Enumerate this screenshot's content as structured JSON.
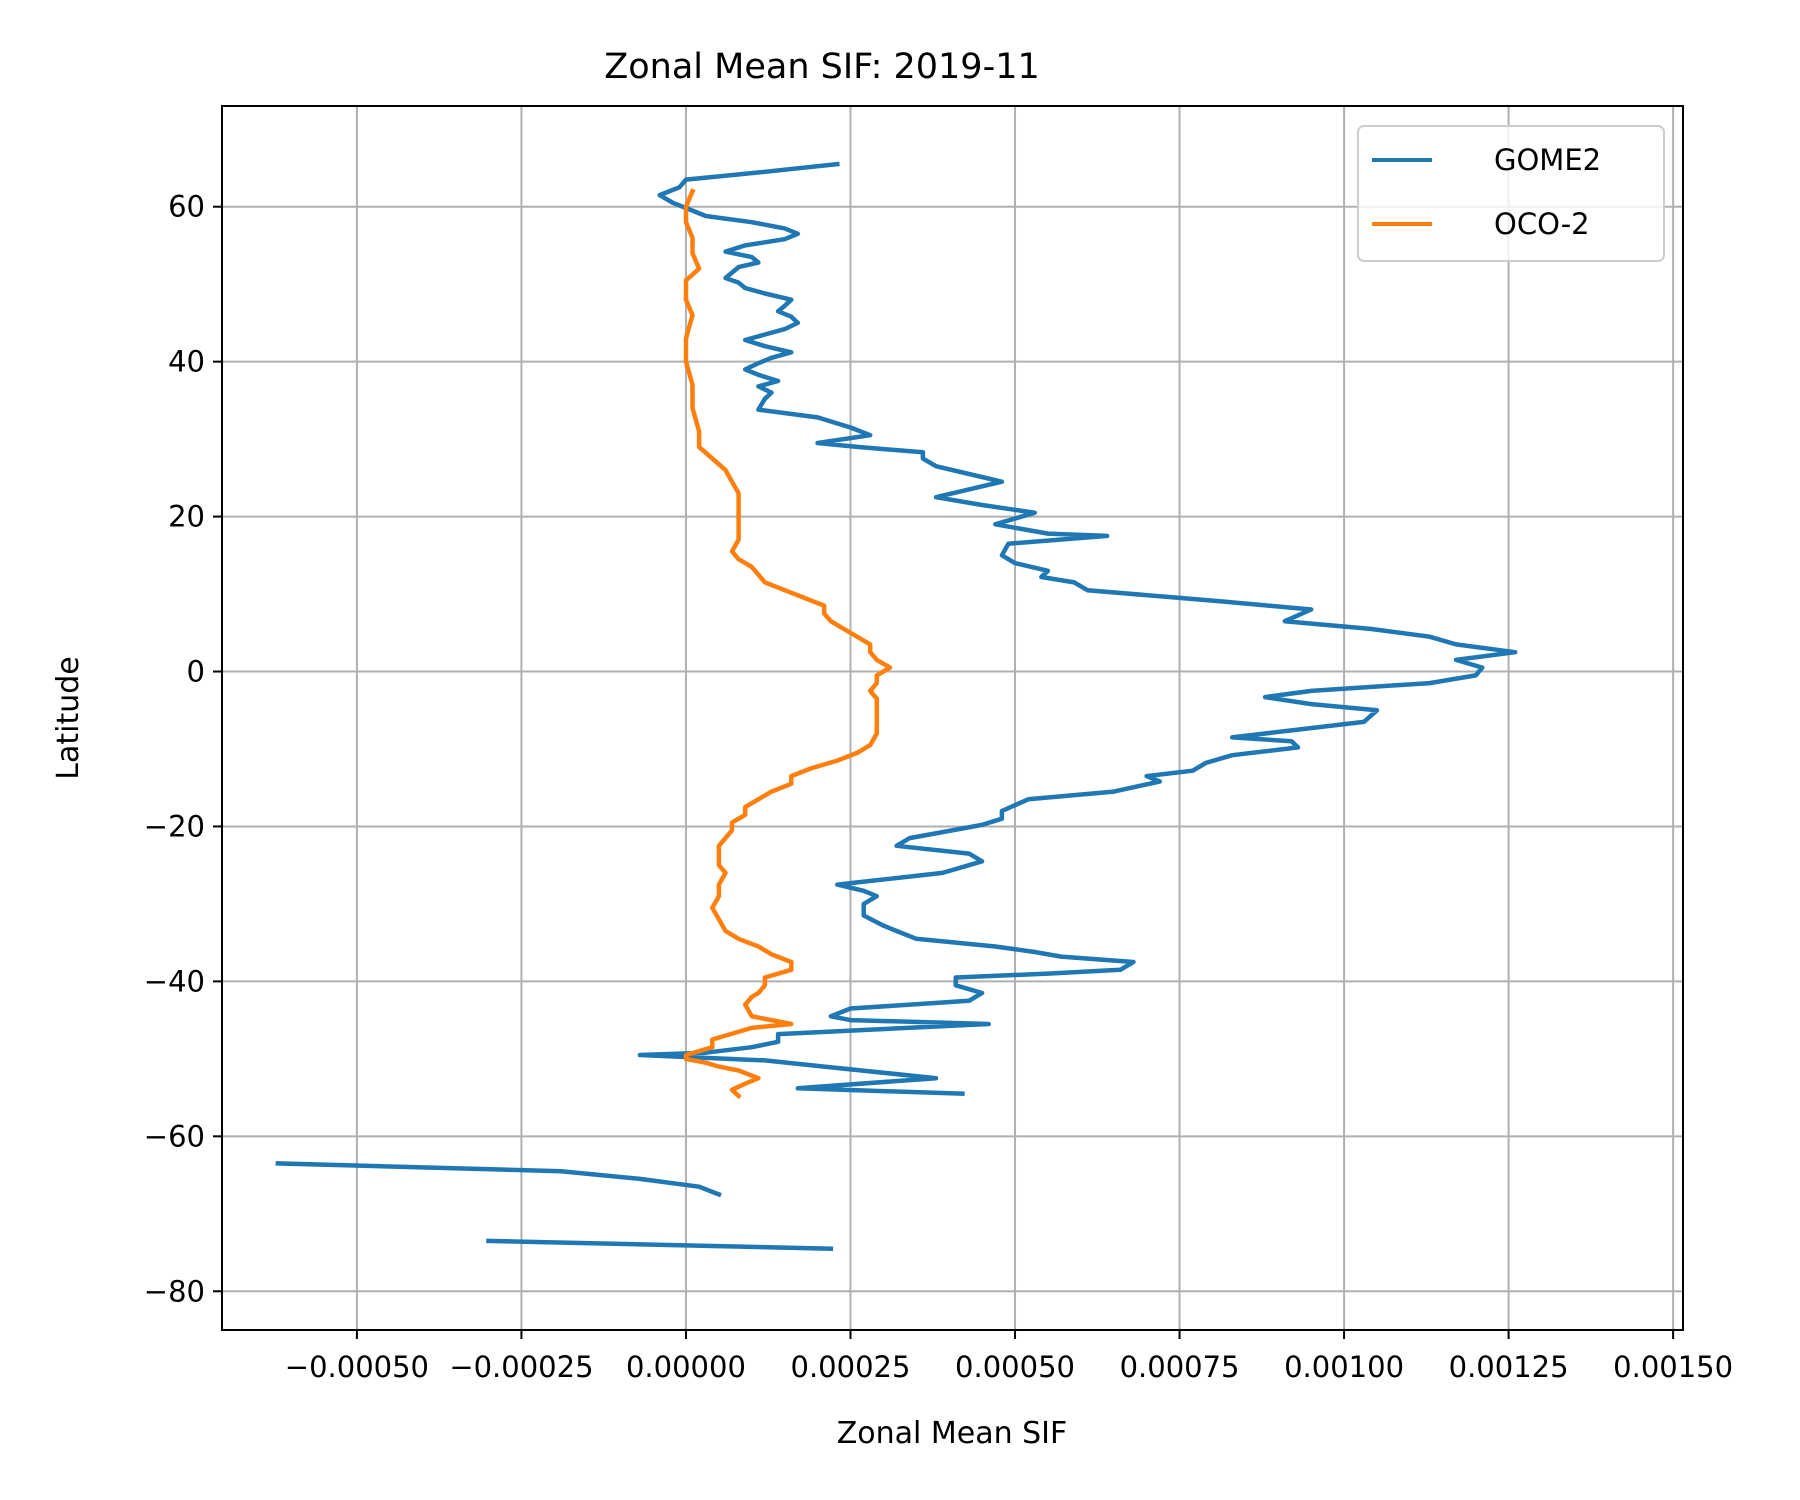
{
  "chart_data": {
    "type": "line",
    "title": "Zonal Mean SIF: 2019-11",
    "xlabel": "Zonal Mean SIF",
    "ylabel": "Latitude",
    "xlim": [
      -0.000705,
      0.001515
    ],
    "ylim": [
      -85,
      73
    ],
    "grid": true,
    "legend_position": "top-right",
    "x_ticks": [
      -0.0005,
      -0.00025,
      0.0,
      0.00025,
      0.0005,
      0.00075,
      0.001,
      0.00125,
      0.0015
    ],
    "x_tick_labels": [
      "−0.00050",
      "−0.00025",
      "0.00000",
      "0.00025",
      "0.00050",
      "0.00075",
      "0.00100",
      "0.00125",
      "0.00150"
    ],
    "y_ticks": [
      -80,
      -60,
      -40,
      -20,
      0,
      20,
      40,
      60
    ],
    "y_tick_labels": [
      "−80",
      "−60",
      "−40",
      "−20",
      "0",
      "20",
      "40",
      "60"
    ],
    "series": [
      {
        "name": "GOME2",
        "color": "#1f77b4",
        "segments": [
          [
            [
              0.00023,
              65.5
            ],
            [
              0.00012,
              64.5
            ],
            [
              0.0,
              63.5
            ],
            [
              -1e-05,
              62.5
            ],
            [
              -4e-05,
              61.5
            ],
            [
              -2e-05,
              60.5
            ],
            [
              1e-05,
              59.5
            ],
            [
              3e-05,
              58.8
            ],
            [
              0.0001,
              58.0
            ],
            [
              0.00015,
              57.2
            ],
            [
              0.00017,
              56.5
            ],
            [
              0.00015,
              55.8
            ],
            [
              9e-05,
              55.0
            ],
            [
              6e-05,
              54.2
            ],
            [
              0.0001,
              53.5
            ],
            [
              0.00011,
              52.8
            ],
            [
              8e-05,
              52.2
            ],
            [
              7e-05,
              51.5
            ],
            [
              6e-05,
              50.8
            ],
            [
              8e-05,
              50.2
            ],
            [
              9e-05,
              49.5
            ],
            [
              0.00012,
              48.8
            ],
            [
              0.00016,
              48.0
            ],
            [
              0.00015,
              47.2
            ],
            [
              0.00014,
              46.5
            ],
            [
              0.00016,
              45.8
            ],
            [
              0.00017,
              45.0
            ],
            [
              0.00015,
              44.2
            ],
            [
              0.00012,
              43.5
            ],
            [
              9e-05,
              42.8
            ],
            [
              0.00012,
              42.0
            ],
            [
              0.00016,
              41.2
            ],
            [
              0.00013,
              40.5
            ],
            [
              0.00011,
              39.8
            ],
            [
              9e-05,
              39.0
            ],
            [
              0.00011,
              38.3
            ],
            [
              0.00014,
              37.5
            ],
            [
              0.00011,
              36.8
            ],
            [
              0.00013,
              36.0
            ],
            [
              0.00012,
              35.2
            ],
            [
              0.00011,
              33.8
            ],
            [
              0.0002,
              32.8
            ],
            [
              0.00025,
              31.5
            ],
            [
              0.00028,
              30.5
            ],
            [
              0.0002,
              29.5
            ],
            [
              0.00026,
              29.0
            ],
            [
              0.00036,
              28.3
            ],
            [
              0.00036,
              27.5
            ],
            [
              0.00038,
              26.5
            ],
            [
              0.00043,
              25.5
            ],
            [
              0.00048,
              24.5
            ],
            [
              0.00038,
              22.5
            ],
            [
              0.00045,
              21.5
            ],
            [
              0.00053,
              20.5
            ],
            [
              0.00047,
              19.0
            ],
            [
              0.00055,
              17.8
            ],
            [
              0.00064,
              17.5
            ],
            [
              0.00049,
              16.5
            ],
            [
              0.00048,
              15.0
            ],
            [
              0.0005,
              14.0
            ],
            [
              0.00055,
              13.0
            ],
            [
              0.00054,
              12.2
            ],
            [
              0.00059,
              11.5
            ],
            [
              0.00061,
              10.5
            ],
            [
              0.00075,
              9.5
            ],
            [
              0.00082,
              9.0
            ],
            [
              0.00095,
              8.0
            ],
            [
              0.00091,
              6.5
            ],
            [
              0.00104,
              5.5
            ],
            [
              0.00113,
              4.5
            ],
            [
              0.00117,
              3.5
            ],
            [
              0.00126,
              2.5
            ],
            [
              0.00117,
              1.5
            ],
            [
              0.00121,
              0.5
            ],
            [
              0.0012,
              -0.5
            ],
            [
              0.00113,
              -1.5
            ],
            [
              0.00095,
              -2.5
            ],
            [
              0.00088,
              -3.3
            ],
            [
              0.00095,
              -4.2
            ],
            [
              0.00105,
              -5.0
            ],
            [
              0.00103,
              -6.5
            ],
            [
              0.00093,
              -7.5
            ],
            [
              0.00083,
              -8.5
            ],
            [
              0.00092,
              -9.0
            ],
            [
              0.00093,
              -9.8
            ],
            [
              0.00083,
              -10.8
            ],
            [
              0.00079,
              -11.8
            ],
            [
              0.00077,
              -12.8
            ],
            [
              0.0007,
              -13.5
            ],
            [
              0.00072,
              -14.2
            ],
            [
              0.00065,
              -15.5
            ],
            [
              0.00052,
              -16.5
            ],
            [
              0.00048,
              -18.0
            ],
            [
              0.00048,
              -19.0
            ],
            [
              0.00045,
              -19.8
            ],
            [
              0.00034,
              -21.5
            ],
            [
              0.00032,
              -22.5
            ],
            [
              0.00043,
              -23.5
            ],
            [
              0.00045,
              -24.5
            ],
            [
              0.00039,
              -26.0
            ],
            [
              0.00023,
              -27.5
            ],
            [
              0.00027,
              -28.3
            ],
            [
              0.00029,
              -29.0
            ],
            [
              0.00027,
              -30.0
            ],
            [
              0.00027,
              -31.5
            ],
            [
              0.0003,
              -32.8
            ],
            [
              0.00032,
              -33.5
            ],
            [
              0.00035,
              -34.5
            ],
            [
              0.00047,
              -35.5
            ],
            [
              0.00053,
              -36.2
            ],
            [
              0.00057,
              -36.8
            ],
            [
              0.00068,
              -37.5
            ],
            [
              0.00066,
              -38.5
            ],
            [
              0.00055,
              -39.0
            ],
            [
              0.00041,
              -39.5
            ],
            [
              0.00041,
              -40.5
            ],
            [
              0.00045,
              -41.5
            ],
            [
              0.00043,
              -42.5
            ],
            [
              0.00025,
              -43.5
            ],
            [
              0.00022,
              -44.5
            ],
            [
              0.00025,
              -45.0
            ],
            [
              0.00046,
              -45.5
            ],
            [
              0.00014,
              -46.8
            ],
            [
              0.00014,
              -47.8
            ],
            [
              0.0001,
              -48.5
            ],
            [
              3e-05,
              -49.2
            ],
            [
              -7e-05,
              -49.5
            ],
            [
              0.00012,
              -50.2
            ],
            [
              0.00021,
              -51.0
            ],
            [
              0.00038,
              -52.5
            ],
            [
              0.00017,
              -53.8
            ],
            [
              0.00042,
              -54.5
            ]
          ],
          [
            [
              -0.00062,
              -63.5
            ],
            [
              -0.00019,
              -64.5
            ],
            [
              -7e-05,
              -65.5
            ],
            [
              2e-05,
              -66.5
            ],
            [
              5e-05,
              -67.5
            ]
          ],
          [
            [
              -0.0003,
              -73.5
            ],
            [
              0.00022,
              -74.5
            ]
          ]
        ]
      },
      {
        "name": "OCO-2",
        "color": "#ff7f0e",
        "segments": [
          [
            [
              1e-05,
              62.0
            ],
            [
              0.0,
              60.0
            ],
            [
              0.0,
              58.0
            ],
            [
              1e-05,
              56.0
            ],
            [
              1e-05,
              54.0
            ],
            [
              2e-05,
              52.0
            ],
            [
              0.0,
              50.5
            ],
            [
              0.0,
              48.0
            ],
            [
              1e-05,
              46.0
            ],
            [
              0.0,
              43.0
            ],
            [
              0.0,
              40.0
            ],
            [
              1e-05,
              37.0
            ],
            [
              1e-05,
              34.0
            ],
            [
              2e-05,
              31.0
            ],
            [
              2e-05,
              29.0
            ],
            [
              4e-05,
              27.5
            ],
            [
              6e-05,
              26.0
            ],
            [
              7e-05,
              24.5
            ],
            [
              8e-05,
              23.0
            ],
            [
              8e-05,
              21.0
            ],
            [
              8e-05,
              19.0
            ],
            [
              8e-05,
              17.0
            ],
            [
              7e-05,
              15.5
            ],
            [
              8e-05,
              14.5
            ],
            [
              0.0001,
              13.5
            ],
            [
              0.00011,
              12.5
            ],
            [
              0.00012,
              11.5
            ],
            [
              0.00015,
              10.5
            ],
            [
              0.00018,
              9.5
            ],
            [
              0.00021,
              8.5
            ],
            [
              0.00021,
              7.5
            ],
            [
              0.00022,
              6.5
            ],
            [
              0.00024,
              5.5
            ],
            [
              0.00026,
              4.5
            ],
            [
              0.00028,
              3.5
            ],
            [
              0.00028,
              2.5
            ],
            [
              0.00029,
              1.5
            ],
            [
              0.00031,
              0.5
            ],
            [
              0.00029,
              -0.5
            ],
            [
              0.00029,
              -1.5
            ],
            [
              0.00028,
              -2.5
            ],
            [
              0.00029,
              -3.5
            ],
            [
              0.00029,
              -5.0
            ],
            [
              0.00029,
              -6.5
            ],
            [
              0.00029,
              -8.0
            ],
            [
              0.00028,
              -9.5
            ],
            [
              0.00026,
              -10.5
            ],
            [
              0.00023,
              -11.5
            ],
            [
              0.00019,
              -12.5
            ],
            [
              0.00016,
              -13.5
            ],
            [
              0.00016,
              -14.5
            ],
            [
              0.00013,
              -15.5
            ],
            [
              0.00011,
              -16.5
            ],
            [
              9e-05,
              -17.5
            ],
            [
              9e-05,
              -18.5
            ],
            [
              7e-05,
              -19.5
            ],
            [
              7e-05,
              -20.5
            ],
            [
              6e-05,
              -21.5
            ],
            [
              5e-05,
              -22.5
            ],
            [
              5e-05,
              -24.0
            ],
            [
              5e-05,
              -25.0
            ],
            [
              6e-05,
              -26.0
            ],
            [
              5e-05,
              -27.5
            ],
            [
              5e-05,
              -29.0
            ],
            [
              4e-05,
              -30.5
            ],
            [
              5e-05,
              -32.0
            ],
            [
              6e-05,
              -33.5
            ],
            [
              8e-05,
              -34.5
            ],
            [
              0.00011,
              -35.5
            ],
            [
              0.00013,
              -36.5
            ],
            [
              0.00016,
              -37.5
            ],
            [
              0.00016,
              -38.5
            ],
            [
              0.00012,
              -39.5
            ],
            [
              0.00012,
              -40.5
            ],
            [
              0.00011,
              -41.5
            ],
            [
              0.0001,
              -42.0
            ],
            [
              9e-05,
              -43.0
            ],
            [
              0.0001,
              -44.5
            ],
            [
              0.00016,
              -45.5
            ],
            [
              0.0001,
              -46.0
            ],
            [
              4e-05,
              -47.5
            ],
            [
              4e-05,
              -48.5
            ],
            [
              0.0,
              -49.5
            ],
            [
              0.0,
              -50.0
            ],
            [
              3e-05,
              -50.5
            ],
            [
              5e-05,
              -51.0
            ],
            [
              8e-05,
              -51.5
            ],
            [
              0.00011,
              -52.5
            ],
            [
              9e-05,
              -53.2
            ],
            [
              7e-05,
              -54.0
            ],
            [
              8e-05,
              -54.8
            ]
          ]
        ]
      }
    ]
  }
}
